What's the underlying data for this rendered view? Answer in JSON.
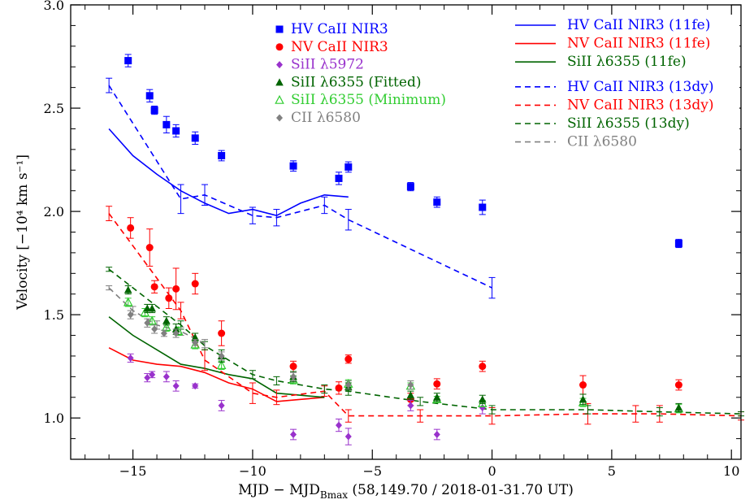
{
  "chart_data": {
    "type": "scatter",
    "xlabel_main": "MJD − MJD",
    "xlabel_sub": "Bmax",
    "xlabel_tail": " (58,149.70 / 2018-01-31.70 UT)",
    "ylabel": "Velocity [−10⁴ km s⁻¹]",
    "xlim": [
      -17.6,
      10.4
    ],
    "ylim": [
      0.8,
      3.0
    ],
    "xticks": [
      -15,
      -10,
      -5,
      0,
      5,
      10
    ],
    "xtick_labels": [
      "−15",
      "−10",
      "−5",
      "0",
      "5",
      "10"
    ],
    "yticks": [
      1.0,
      1.5,
      2.0,
      2.5,
      3.0
    ],
    "ytick_labels": [
      "1.0",
      "1.5",
      "2.0",
      "2.5",
      "3.0"
    ],
    "grid": false,
    "legend_left": [
      {
        "label": "HV CaII NIR3",
        "color": "#0000ff",
        "marker": "square"
      },
      {
        "label": "NV CaII NIR3",
        "color": "#ff0000",
        "marker": "circle"
      },
      {
        "label": "SiII λ5972",
        "color": "#9932cc",
        "marker": "diamond"
      },
      {
        "label": "SiII λ6355 (Fitted)",
        "color": "#006400",
        "marker": "triangle"
      },
      {
        "label": "SiII λ6355 (Minimum)",
        "color": "#32cd32",
        "marker": "triangle-open"
      },
      {
        "label": "CII λ6580",
        "color": "#808080",
        "marker": "diamond"
      }
    ],
    "legend_right": [
      {
        "label": "HV CaII NIR3 (11fe)",
        "color": "#0000ff",
        "dash": false
      },
      {
        "label": "NV CaII NIR3 (11fe)",
        "color": "#ff0000",
        "dash": false
      },
      {
        "label": "SiII λ6355 (11fe)",
        "color": "#006400",
        "dash": false
      },
      {
        "label": "HV CaII NIR3 (13dy)",
        "color": "#0000ff",
        "dash": true
      },
      {
        "label": "NV CaII NIR3 (13dy)",
        "color": "#ff0000",
        "dash": true
      },
      {
        "label": "SiII λ6355 (13dy)",
        "color": "#006400",
        "dash": true
      },
      {
        "label": "CII λ6580",
        "color": "#808080",
        "dash": true
      }
    ],
    "point_series": [
      {
        "name": "HV CaII NIR3",
        "color": "#0000ff",
        "marker": "square",
        "points": [
          [
            -15.2,
            2.73,
            0.03
          ],
          [
            -14.3,
            2.56,
            0.03
          ],
          [
            -14.1,
            2.49,
            0.02
          ],
          [
            -13.6,
            2.42,
            0.04
          ],
          [
            -13.2,
            2.39,
            0.03
          ],
          [
            -12.4,
            2.355,
            0.03
          ],
          [
            -11.3,
            2.27,
            0.025
          ],
          [
            -8.3,
            2.22,
            0.025
          ],
          [
            -6.4,
            2.16,
            0.03
          ],
          [
            -6.0,
            2.215,
            0.025
          ],
          [
            -3.4,
            2.12,
            0.02
          ],
          [
            -2.3,
            2.045,
            0.025
          ],
          [
            -0.4,
            2.02,
            0.035
          ],
          [
            7.8,
            1.845,
            0.02
          ]
        ]
      },
      {
        "name": "NV CaII NIR3",
        "color": "#ff0000",
        "marker": "circle",
        "points": [
          [
            -15.1,
            1.92,
            0.05
          ],
          [
            -14.3,
            1.825,
            0.09
          ],
          [
            -14.1,
            1.635,
            0.03
          ],
          [
            -13.5,
            1.58,
            0.05
          ],
          [
            -13.2,
            1.625,
            0.1
          ],
          [
            -12.4,
            1.65,
            0.05
          ],
          [
            -11.3,
            1.41,
            0.06
          ],
          [
            -8.3,
            1.25,
            0.025
          ],
          [
            -6.4,
            1.145,
            0.03
          ],
          [
            -6.0,
            1.285,
            0.02
          ],
          [
            -3.4,
            1.09,
            0.03
          ],
          [
            -2.3,
            1.165,
            0.025
          ],
          [
            -0.4,
            1.25,
            0.025
          ],
          [
            3.8,
            1.16,
            0.045
          ],
          [
            7.8,
            1.16,
            0.025
          ]
        ]
      },
      {
        "name": "SiII λ5972",
        "color": "#9932cc",
        "marker": "diamond",
        "points": [
          [
            -15.1,
            1.29,
            0.02
          ],
          [
            -14.4,
            1.195,
            0.02
          ],
          [
            -14.2,
            1.21,
            0.015
          ],
          [
            -13.6,
            1.2,
            0.025
          ],
          [
            -13.2,
            1.155,
            0.025
          ],
          [
            -12.4,
            1.155,
            0.01
          ],
          [
            -11.3,
            1.06,
            0.025
          ],
          [
            -8.3,
            0.92,
            0.025
          ],
          [
            -6.4,
            0.965,
            0.03
          ],
          [
            -6.0,
            0.91,
            0.04
          ],
          [
            -3.4,
            1.06,
            0.025
          ],
          [
            -2.3,
            0.92,
            0.025
          ],
          [
            -0.4,
            1.05,
            0.03
          ]
        ]
      },
      {
        "name": "SiII λ6355 (Minimum)",
        "color": "#32cd32",
        "marker": "triangle-open",
        "points": [
          [
            -15.2,
            1.56,
            0.02
          ],
          [
            -14.5,
            1.51,
            0.02
          ],
          [
            -14.2,
            1.47,
            0.02
          ],
          [
            -13.6,
            1.44,
            0.02
          ],
          [
            -13.1,
            1.42,
            0.02
          ],
          [
            -12.4,
            1.355,
            0.02
          ],
          [
            -11.3,
            1.255,
            0.02
          ],
          [
            -8.3,
            1.185,
            0.02
          ],
          [
            -6.0,
            1.165,
            0.02
          ],
          [
            -3.4,
            1.155,
            0.015
          ],
          [
            -2.3,
            1.09,
            0.015
          ],
          [
            -0.4,
            1.07,
            0.015
          ],
          [
            3.8,
            1.075,
            0.02
          ],
          [
            7.8,
            1.045,
            0.02
          ]
        ]
      },
      {
        "name": "SiII λ6355 (Fitted)",
        "color": "#006400",
        "marker": "triangle",
        "points": [
          [
            -15.2,
            1.62,
            0.02
          ],
          [
            -14.4,
            1.53,
            0.02
          ],
          [
            -14.2,
            1.53,
            0.02
          ],
          [
            -13.6,
            1.47,
            0.02
          ],
          [
            -13.2,
            1.43,
            0.025
          ],
          [
            -12.4,
            1.39,
            0.02
          ],
          [
            -11.3,
            1.3,
            0.03
          ],
          [
            -8.3,
            1.2,
            0.025
          ],
          [
            -6.0,
            1.15,
            0.02
          ],
          [
            -3.4,
            1.11,
            0.02
          ],
          [
            -2.3,
            1.1,
            0.02
          ],
          [
            -0.4,
            1.09,
            0.02
          ],
          [
            3.8,
            1.09,
            0.025
          ],
          [
            7.8,
            1.05,
            0.02
          ]
        ]
      },
      {
        "name": "CII λ6580",
        "color": "#808080",
        "marker": "diamond",
        "points": [
          [
            -15.1,
            1.5,
            0.02
          ],
          [
            -14.4,
            1.46,
            0.02
          ],
          [
            -14.1,
            1.43,
            0.02
          ],
          [
            -13.7,
            1.41,
            0.015
          ],
          [
            -13.2,
            1.41,
            0.02
          ],
          [
            -12.4,
            1.365,
            0.015
          ],
          [
            -11.3,
            1.3,
            0.02
          ],
          [
            -8.3,
            1.2,
            0.02
          ],
          [
            -6.0,
            1.16,
            0.02
          ],
          [
            -3.4,
            1.16,
            0.02
          ]
        ]
      }
    ],
    "line_series": [
      {
        "name": "HV CaII NIR3 (11fe)",
        "color": "#0000ff",
        "dash": false,
        "points": [
          [
            -16.0,
            2.4
          ],
          [
            -15.0,
            2.27
          ],
          [
            -14.0,
            2.18
          ],
          [
            -13.0,
            2.1
          ],
          [
            -12.0,
            2.04
          ],
          [
            -11.0,
            1.99
          ],
          [
            -10.0,
            2.01
          ],
          [
            -9.0,
            1.98
          ],
          [
            -8.0,
            2.04
          ],
          [
            -7.0,
            2.08
          ],
          [
            -6.0,
            2.07
          ]
        ]
      },
      {
        "name": "NV CaII NIR3 (11fe)",
        "color": "#ff0000",
        "dash": false,
        "points": [
          [
            -16.0,
            1.34
          ],
          [
            -15.0,
            1.28
          ],
          [
            -14.0,
            1.26
          ],
          [
            -13.0,
            1.25
          ],
          [
            -12.0,
            1.22
          ],
          [
            -11.0,
            1.17
          ],
          [
            -10.0,
            1.14
          ],
          [
            -9.0,
            1.08
          ],
          [
            -8.0,
            1.09
          ],
          [
            -7.0,
            1.1
          ]
        ]
      },
      {
        "name": "SiII λ6355 (11fe)",
        "color": "#006400",
        "dash": false,
        "points": [
          [
            -16.0,
            1.49
          ],
          [
            -15.0,
            1.4
          ],
          [
            -14.0,
            1.33
          ],
          [
            -13.0,
            1.26
          ],
          [
            -12.0,
            1.24
          ],
          [
            -11.0,
            1.21
          ],
          [
            -10.0,
            1.19
          ],
          [
            -9.0,
            1.12
          ],
          [
            -8.0,
            1.11
          ],
          [
            -7.0,
            1.1
          ]
        ]
      },
      {
        "name": "HV CaII NIR3 (13dy)",
        "color": "#0000ff",
        "dash": true,
        "points": [
          [
            -16.0,
            2.61,
            0.035
          ],
          [
            -13.0,
            2.06,
            0.07
          ],
          [
            -12.0,
            2.08,
            0.05
          ],
          [
            -10.0,
            1.98,
            0.04
          ],
          [
            -9.0,
            1.97,
            0.04
          ],
          [
            -7.0,
            2.03,
            0.04
          ],
          [
            -6.0,
            1.96,
            0.05
          ],
          [
            0.0,
            1.63,
            0.05
          ]
        ]
      },
      {
        "name": "NV CaII NIR3 (13dy)",
        "color": "#ff0000",
        "dash": true,
        "points": [
          [
            -16.0,
            1.99,
            0.035
          ],
          [
            -13.0,
            1.52,
            0.04
          ],
          [
            -12.0,
            1.28,
            0.05
          ],
          [
            -10.0,
            1.12,
            0.05
          ],
          [
            -9.0,
            1.1,
            0.035
          ],
          [
            -7.0,
            1.13,
            0.025
          ],
          [
            -6.0,
            1.01,
            0.03
          ],
          [
            -3.0,
            1.01,
            0.03
          ],
          [
            0.0,
            1.01,
            0.04
          ],
          [
            4.0,
            1.02,
            0.05
          ],
          [
            6.0,
            1.02,
            0.04
          ],
          [
            7.0,
            1.02,
            0.04
          ],
          [
            10.4,
            1.01,
            0.02
          ]
        ]
      },
      {
        "name": "SiII λ6355 (13dy)",
        "color": "#006400",
        "dash": true,
        "points": [
          [
            -16.0,
            1.72,
            0.01
          ],
          [
            -13.0,
            1.45,
            0.02
          ],
          [
            -12.0,
            1.35,
            0.02
          ],
          [
            -10.0,
            1.21,
            0.02
          ],
          [
            -9.0,
            1.18,
            0.02
          ],
          [
            -7.0,
            1.14,
            0.02
          ],
          [
            -6.0,
            1.13,
            0.02
          ],
          [
            -3.0,
            1.08,
            0.02
          ],
          [
            0.0,
            1.04,
            0.02
          ],
          [
            4.0,
            1.04,
            0.02
          ],
          [
            7.0,
            1.03,
            0.02
          ],
          [
            10.4,
            1.02,
            0.01
          ]
        ]
      },
      {
        "name": "CII λ6580 (13dy)",
        "color": "#808080",
        "dash": true,
        "points": [
          [
            -16.0,
            1.63,
            0.01
          ],
          [
            -15.0,
            1.52,
            0.02
          ],
          [
            -14.0,
            1.45,
            0.02
          ],
          [
            -13.0,
            1.42,
            0.02
          ],
          [
            -12.0,
            1.36,
            0.02
          ]
        ]
      }
    ]
  }
}
